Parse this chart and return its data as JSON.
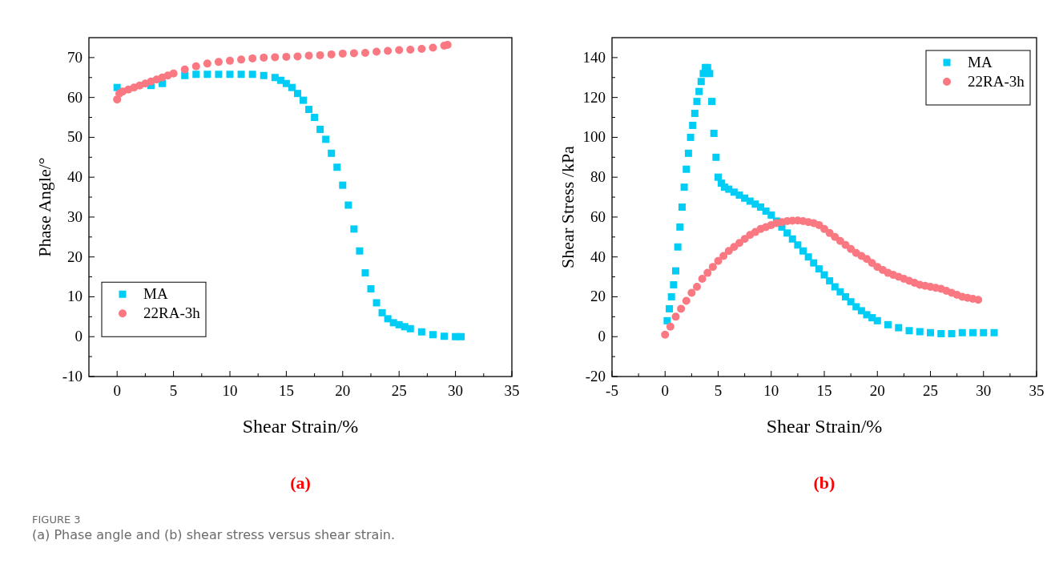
{
  "chart_data": [
    {
      "type": "scatter",
      "xlabel": "Shear Strain/%",
      "ylabel": "Phase Angle/°",
      "xlim": [
        -2.5,
        35
      ],
      "xticks": [
        0,
        5,
        10,
        15,
        20,
        25,
        30,
        35
      ],
      "ylim": [
        -10,
        75
      ],
      "yticks": [
        -10,
        0,
        10,
        20,
        30,
        40,
        50,
        60,
        70
      ],
      "legend": "bottom left",
      "grid": false,
      "annotations": [
        "(a)",
        "FIGURE 3",
        "(a) Phase angle and (b) shear stress versus shear strain."
      ],
      "series": [
        {
          "name": "MA",
          "color": "#00cdf5",
          "marker": "square",
          "x": [
            0,
            3,
            4,
            6,
            7,
            8,
            9,
            10,
            11,
            12,
            13,
            14,
            14.5,
            15,
            15.5,
            16,
            16.5,
            17,
            17.5,
            18,
            18.5,
            19,
            19.5,
            20,
            20.5,
            21,
            21.5,
            22,
            22.5,
            23,
            23.5,
            24,
            24.5,
            25,
            25.5,
            26,
            27,
            28,
            29,
            30,
            30.5
          ],
          "values": [
            62.5,
            63,
            63.5,
            65.5,
            65.8,
            65.8,
            65.8,
            65.8,
            65.8,
            65.8,
            65.5,
            65,
            64.3,
            63.5,
            62.5,
            61,
            59.3,
            57,
            55,
            52,
            49.5,
            46,
            42.5,
            38,
            33,
            27,
            21.5,
            16,
            12,
            8.5,
            6,
            4.5,
            3.5,
            3,
            2.5,
            2,
            1.2,
            0.5,
            0.1,
            0,
            0
          ]
        },
        {
          "name": "22RA-3h",
          "color": "#fa7882",
          "marker": "circle",
          "x": [
            0,
            0.2,
            0.5,
            1,
            1.5,
            2,
            2.5,
            3,
            3.5,
            4,
            4.5,
            5,
            6,
            7,
            8,
            9,
            10,
            11,
            12,
            13,
            14,
            15,
            16,
            17,
            18,
            19,
            20,
            21,
            22,
            23,
            24,
            25,
            26,
            27,
            28,
            29,
            29.3
          ],
          "values": [
            59.5,
            61,
            61.5,
            62,
            62.5,
            63,
            63.5,
            64,
            64.5,
            65,
            65.5,
            66,
            67,
            67.8,
            68.5,
            68.9,
            69.2,
            69.5,
            69.8,
            70,
            70.1,
            70.2,
            70.3,
            70.5,
            70.6,
            70.8,
            71,
            71.1,
            71.2,
            71.5,
            71.7,
            71.9,
            72,
            72.2,
            72.5,
            73,
            73.2
          ]
        }
      ]
    },
    {
      "type": "scatter",
      "xlabel": "Shear Strain/%",
      "ylabel": "Shear Stress /kPa",
      "xlim": [
        -5,
        35
      ],
      "xticks": [
        -5,
        0,
        5,
        10,
        15,
        20,
        25,
        30,
        35
      ],
      "ylim": [
        -20,
        150
      ],
      "yticks": [
        -20,
        0,
        20,
        40,
        60,
        80,
        100,
        120,
        140
      ],
      "legend": "top right",
      "grid": false,
      "annotations": [
        "(b)"
      ],
      "series": [
        {
          "name": "MA",
          "color": "#00cdf5",
          "marker": "square",
          "x": [
            0.2,
            0.4,
            0.6,
            0.8,
            1,
            1.2,
            1.4,
            1.6,
            1.8,
            2,
            2.2,
            2.4,
            2.6,
            2.8,
            3,
            3.2,
            3.4,
            3.6,
            3.8,
            4,
            4.2,
            4.4,
            4.6,
            4.8,
            5,
            5.3,
            5.6,
            6,
            6.5,
            7,
            7.5,
            8,
            8.5,
            9,
            9.5,
            10,
            10.5,
            11,
            11.5,
            12,
            12.5,
            13,
            13.5,
            14,
            14.5,
            15,
            15.5,
            16,
            16.5,
            17,
            17.5,
            18,
            18.5,
            19,
            19.5,
            20,
            21,
            22,
            23,
            24,
            25,
            26,
            27,
            28,
            29,
            30,
            31
          ],
          "values": [
            8,
            14,
            20,
            26,
            33,
            45,
            55,
            65,
            75,
            84,
            92,
            100,
            106,
            112,
            118,
            123,
            128,
            132,
            135,
            135,
            132,
            118,
            102,
            90,
            80,
            77,
            75,
            74,
            72.5,
            71,
            69.5,
            68,
            66.5,
            65,
            63,
            61,
            58,
            55,
            52,
            49,
            46,
            43,
            40,
            37,
            34,
            31,
            28,
            25,
            22.5,
            20,
            17.5,
            15,
            13,
            11,
            9.5,
            8,
            6,
            4.5,
            3,
            2.5,
            2,
            1.5,
            1.5,
            2,
            2,
            2,
            2
          ]
        },
        {
          "name": "22RA-3h",
          "color": "#fa7882",
          "marker": "circle",
          "x": [
            0,
            0.5,
            1,
            1.5,
            2,
            2.5,
            3,
            3.5,
            4,
            4.5,
            5,
            5.5,
            6,
            6.5,
            7,
            7.5,
            8,
            8.5,
            9,
            9.5,
            10,
            10.5,
            11,
            11.5,
            12,
            12.5,
            13,
            13.5,
            14,
            14.5,
            15,
            15.5,
            16,
            16.5,
            17,
            17.5,
            18,
            18.5,
            19,
            19.5,
            20,
            20.5,
            21,
            21.5,
            22,
            22.5,
            23,
            23.5,
            24,
            24.5,
            25,
            25.5,
            26,
            26.5,
            27,
            27.5,
            28,
            28.5,
            29,
            29.5
          ],
          "values": [
            1,
            5,
            10,
            14,
            18,
            22,
            25,
            29,
            32,
            35,
            38,
            40.5,
            43,
            45,
            47,
            49,
            51,
            52.5,
            54,
            55,
            56,
            57,
            57.5,
            58,
            58.2,
            58.3,
            58,
            57.5,
            57,
            56,
            54,
            52,
            50,
            48,
            46,
            44,
            42,
            40.5,
            39,
            37,
            35,
            33.5,
            32,
            31,
            30,
            29,
            28,
            27,
            26,
            25.5,
            25,
            24.5,
            24,
            23,
            22,
            21,
            20,
            19.5,
            19,
            18.5
          ]
        }
      ]
    }
  ]
}
